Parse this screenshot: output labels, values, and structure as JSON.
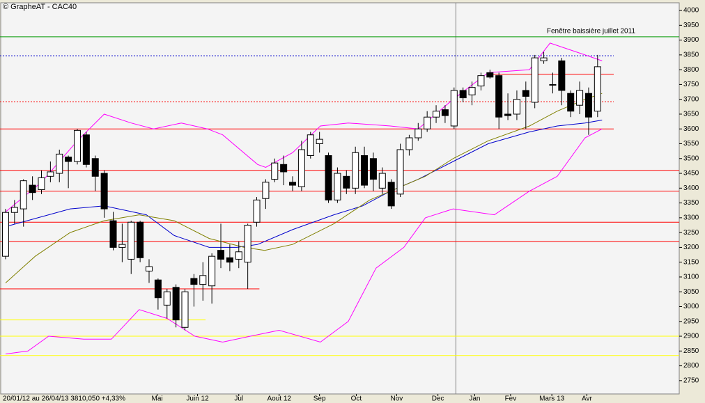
{
  "chart_data": {
    "type": "candlestick",
    "title": "© GrapheAT - CAC40",
    "info": "20/01/12 au 26/04/13  3810,050  +4,33%",
    "annotation": "Fenêtre baissière juillet 2011",
    "ylim": [
      2705,
      4026
    ],
    "yticks": [
      2750,
      2800,
      2850,
      2900,
      2950,
      3000,
      3050,
      3100,
      3150,
      3200,
      3250,
      3300,
      3350,
      3400,
      3450,
      3500,
      3550,
      3600,
      3650,
      3700,
      3750,
      3800,
      3850,
      3900,
      3950,
      4000
    ],
    "xlim": [
      -0.62,
      75.1
    ],
    "xticks": [
      {
        "value": 16.9,
        "label": "Mai"
      },
      {
        "value": 21.4,
        "label": "Juin 12"
      },
      {
        "value": 26,
        "label": "Jul"
      },
      {
        "value": 30.5,
        "label": "Aout 12"
      },
      {
        "value": 35,
        "label": "Sep"
      },
      {
        "value": 39.1,
        "label": "Oct"
      },
      {
        "value": 43.6,
        "label": "Nov"
      },
      {
        "value": 48.2,
        "label": "Dec"
      },
      {
        "value": 52.3,
        "label": "Jan"
      },
      {
        "value": 56.3,
        "label": "Fev"
      },
      {
        "value": 60.9,
        "label": "Mars 13"
      },
      {
        "value": 64.8,
        "label": "Avr"
      }
    ],
    "open": [
      3170,
      3318,
      3330,
      3410,
      3395,
      3440,
      3450,
      3505,
      3490,
      3580,
      3500,
      3450,
      3290,
      3200,
      3160,
      3285,
      3120,
      3090,
      3005,
      3065,
      2930,
      3095,
      3075,
      3070,
      3190,
      3165,
      3160,
      3150,
      3285,
      3365,
      3430,
      3480,
      3420,
      3405,
      3510,
      3550,
      3510,
      3360,
      3440,
      3400,
      3510,
      3500,
      3400,
      3420,
      3380,
      3530,
      3570,
      3600,
      3640,
      3665,
      3610,
      3730,
      3715,
      3745,
      3790,
      3780,
      3650,
      3650,
      3730,
      3690,
      3830,
      3750,
      3830,
      3720,
      3680,
      3720,
      3660
    ],
    "high": [
      3330,
      3360,
      3430,
      3440,
      3460,
      3490,
      3530,
      3510,
      3600,
      3590,
      3510,
      3460,
      3320,
      3280,
      3290,
      3290,
      3160,
      3095,
      3060,
      3075,
      3060,
      3110,
      3150,
      3180,
      3280,
      3210,
      3220,
      3280,
      3370,
      3430,
      3500,
      3510,
      3440,
      3560,
      3590,
      3590,
      3520,
      3470,
      3460,
      3540,
      3540,
      3520,
      3470,
      3430,
      3550,
      3580,
      3620,
      3660,
      3680,
      3680,
      3740,
      3740,
      3760,
      3790,
      3800,
      3790,
      3720,
      3730,
      3760,
      3850,
      3860,
      3790,
      3840,
      3730,
      3760,
      3740,
      3850
    ],
    "low": [
      3160,
      3280,
      3270,
      3360,
      3380,
      3420,
      3420,
      3400,
      3480,
      3470,
      3390,
      3300,
      3190,
      3150,
      3110,
      3150,
      3080,
      2990,
      2960,
      2930,
      2920,
      3000,
      3020,
      3010,
      3130,
      3120,
      3130,
      3060,
      3270,
      3330,
      3420,
      3410,
      3390,
      3390,
      3500,
      3520,
      3350,
      3350,
      3380,
      3380,
      3400,
      3390,
      3380,
      3330,
      3370,
      3510,
      3560,
      3590,
      3620,
      3620,
      3600,
      3690,
      3680,
      3730,
      3770,
      3600,
      3630,
      3630,
      3600,
      3670,
      3820,
      3720,
      3680,
      3640,
      3650,
      3580,
      3640
    ],
    "close": [
      3318,
      3335,
      3425,
      3385,
      3435,
      3455,
      3515,
      3490,
      3595,
      3480,
      3440,
      3330,
      3200,
      3210,
      3285,
      3165,
      3135,
      3030,
      3050,
      2955,
      3050,
      3075,
      3105,
      3170,
      3160,
      3150,
      3185,
      3275,
      3360,
      3420,
      3485,
      3455,
      3410,
      3530,
      3580,
      3565,
      3360,
      3450,
      3400,
      3520,
      3410,
      3430,
      3450,
      3340,
      3530,
      3570,
      3600,
      3640,
      3660,
      3645,
      3730,
      3705,
      3740,
      3780,
      3775,
      3640,
      3645,
      3700,
      3710,
      3840,
      3840,
      3750,
      3730,
      3660,
      3730,
      3640,
      3810
    ],
    "up_color": "#ffffff",
    "down_color": "#000000",
    "lines": [
      {
        "color": "#0000cc",
        "x": [
          0,
          7.2,
          11,
          15.7,
          18.8,
          22.7,
          25.8,
          28.1,
          32,
          36.6,
          39.8,
          42.9,
          46,
          49.9,
          53.8,
          58.4,
          61.5,
          64.6,
          66.5
        ],
        "values": [
          3270,
          3330,
          3340,
          3310,
          3240,
          3200,
          3200,
          3210,
          3260,
          3310,
          3340,
          3390,
          3430,
          3490,
          3550,
          3590,
          3610,
          3620,
          3630
        ]
      },
      {
        "color": "#808000",
        "x": [
          0,
          3.3,
          7.2,
          11,
          14.9,
          18.8,
          22.7,
          26.6,
          28.9,
          32,
          36.6,
          40.6,
          43.7,
          46.8,
          49.9,
          53.8,
          58.4,
          61.5,
          64.6,
          66.5
        ],
        "values": [
          3080,
          3170,
          3250,
          3290,
          3310,
          3290,
          3230,
          3200,
          3190,
          3210,
          3280,
          3360,
          3400,
          3440,
          3500,
          3560,
          3610,
          3660,
          3700,
          3720
        ]
      },
      {
        "color": "#ff00ff",
        "x": [
          0,
          4,
          8,
          11,
          14,
          16.5,
          19.6,
          22.5,
          24.2,
          28.1,
          29,
          32,
          35.1,
          38.2,
          42.9,
          46,
          49.9,
          53.8,
          58.4,
          60.7,
          64.6,
          66.5
        ],
        "values": [
          3320,
          3420,
          3560,
          3650,
          3620,
          3600,
          3620,
          3600,
          3580,
          3480,
          3470,
          3520,
          3610,
          3620,
          3610,
          3600,
          3700,
          3790,
          3800,
          3890,
          3850,
          3830
        ]
      },
      {
        "color": "#ff00ff",
        "x": [
          0,
          2.5,
          4.8,
          8.7,
          11.8,
          14.9,
          18,
          21.1,
          24.2,
          27.3,
          30.5,
          35.1,
          38.2,
          41.3,
          44.4,
          46.8,
          49.9,
          54.5,
          58.4,
          61.5,
          64.6,
          66.5
        ],
        "values": [
          2840,
          2850,
          2900,
          2890,
          2890,
          2990,
          2960,
          2900,
          2880,
          2900,
          2920,
          2880,
          2950,
          3130,
          3200,
          3300,
          3330,
          3310,
          3390,
          3440,
          3570,
          3600
        ]
      }
    ],
    "levels": [
      {
        "value": 3911,
        "color": "#009900",
        "style": "solid",
        "x": [
          -0.62,
          75.1
        ]
      },
      {
        "value": 3847,
        "color": "#0000cc",
        "style": "dotted",
        "x": [
          -0.62,
          67.8
        ]
      },
      {
        "value": 3785,
        "color": "#ff0000",
        "style": "solid",
        "x": [
          53.8,
          67.8
        ]
      },
      {
        "value": 3692,
        "color": "#ff0000",
        "style": "dotted",
        "x": [
          -0.62,
          67.8
        ]
      },
      {
        "value": 3600,
        "color": "#ff0000",
        "style": "solid",
        "x": [
          -0.62,
          67.8
        ]
      },
      {
        "value": 3460,
        "color": "#ff0000",
        "style": "solid",
        "x": [
          -0.62,
          75.1
        ]
      },
      {
        "value": 3390,
        "color": "#ff0000",
        "style": "solid",
        "x": [
          -0.62,
          75.1
        ]
      },
      {
        "value": 3285,
        "color": "#ff0000",
        "style": "solid",
        "x": [
          -0.62,
          75.1
        ]
      },
      {
        "value": 3220,
        "color": "#ff0000",
        "style": "solid",
        "x": [
          -0.62,
          75.1
        ]
      },
      {
        "value": 3060,
        "color": "#ff0000",
        "style": "solid",
        "x": [
          -0.62,
          28.3
        ]
      },
      {
        "value": 2955,
        "color": "#ffff00",
        "style": "solid",
        "x": [
          -0.62,
          22.3
        ]
      },
      {
        "value": 2900,
        "color": "#ffff00",
        "style": "solid",
        "x": [
          -0.62,
          75.1
        ]
      },
      {
        "value": 2835,
        "color": "#ffff00",
        "style": "solid",
        "x": [
          -0.62,
          75.1
        ]
      }
    ],
    "vline": 50.2
  }
}
